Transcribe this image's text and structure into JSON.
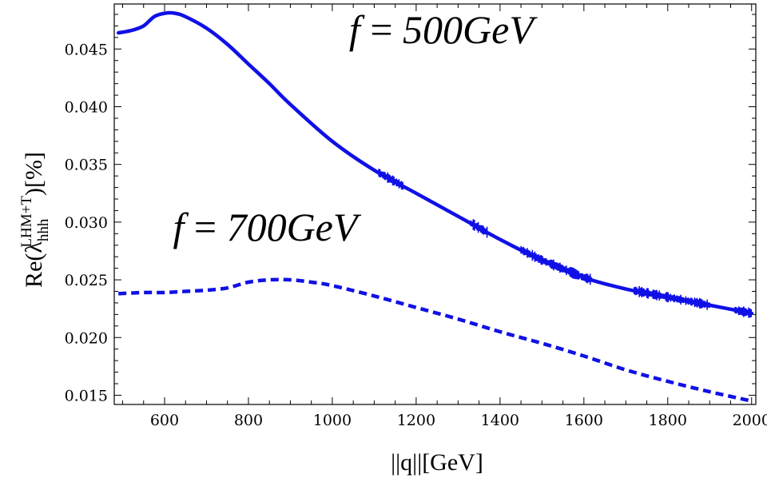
{
  "chart_data": {
    "type": "line",
    "title": "",
    "xlabel": "||q||[GeV]",
    "ylabel": {
      "prefix": "Re(λ",
      "sub": "hhh",
      "sup": "LHM+T",
      "suffix": ")[%]"
    },
    "xlim": [
      480,
      2010
    ],
    "ylim": [
      0.0142,
      0.0489
    ],
    "xticks": [
      600,
      800,
      1000,
      1200,
      1400,
      1600,
      1800,
      2000
    ],
    "xtick_labels": [
      "600",
      "800",
      "1000",
      "1200",
      "1400",
      "1600",
      "1800",
      "2000"
    ],
    "yticks": [
      0.015,
      0.02,
      0.025,
      0.03,
      0.035,
      0.04,
      0.045
    ],
    "ytick_labels": [
      "0.015",
      "0.020",
      "0.025",
      "0.030",
      "0.035",
      "0.040",
      "0.045"
    ],
    "grid": false,
    "line_color": "#1010e6",
    "series": [
      {
        "label": "f = 500GeV",
        "style": "solid",
        "x": [
          490,
          520,
          550,
          575,
          600,
          625,
          650,
          700,
          750,
          800,
          850,
          900,
          1000,
          1100,
          1200,
          1300,
          1400,
          1500,
          1600,
          1700,
          1800,
          1900,
          2000
        ],
        "y": [
          0.0464,
          0.0466,
          0.047,
          0.0478,
          0.0481,
          0.0481,
          0.0478,
          0.0468,
          0.0454,
          0.0437,
          0.042,
          0.0402,
          0.037,
          0.0345,
          0.0325,
          0.0305,
          0.0285,
          0.0267,
          0.0252,
          0.0242,
          0.0235,
          0.0228,
          0.0221
        ]
      },
      {
        "label": "f = 700GeV",
        "style": "dashed",
        "x": [
          490,
          550,
          600,
          650,
          700,
          750,
          800,
          850,
          900,
          950,
          1000,
          1100,
          1200,
          1300,
          1400,
          1500,
          1600,
          1700,
          1800,
          1900,
          2000
        ],
        "y": [
          0.0238,
          0.0239,
          0.0239,
          0.024,
          0.0241,
          0.0243,
          0.0248,
          0.025,
          0.025,
          0.0248,
          0.0245,
          0.0236,
          0.0226,
          0.0216,
          0.0205,
          0.0195,
          0.0184,
          0.0172,
          0.0162,
          0.0153,
          0.0145
        ]
      }
    ],
    "annotations": [
      {
        "text_f": "f",
        "text_eq": " = ",
        "text_val": "500GeV",
        "x": 1040,
        "y": 0.0455
      },
      {
        "text_f": "f",
        "text_eq": " = ",
        "text_val": "700GeV",
        "x": 620,
        "y": 0.0284
      }
    ],
    "noise_regions": [
      [
        1110,
        1170
      ],
      [
        1330,
        1370
      ],
      [
        1450,
        1620
      ],
      [
        1720,
        1900
      ],
      [
        1960,
        2000
      ]
    ]
  }
}
